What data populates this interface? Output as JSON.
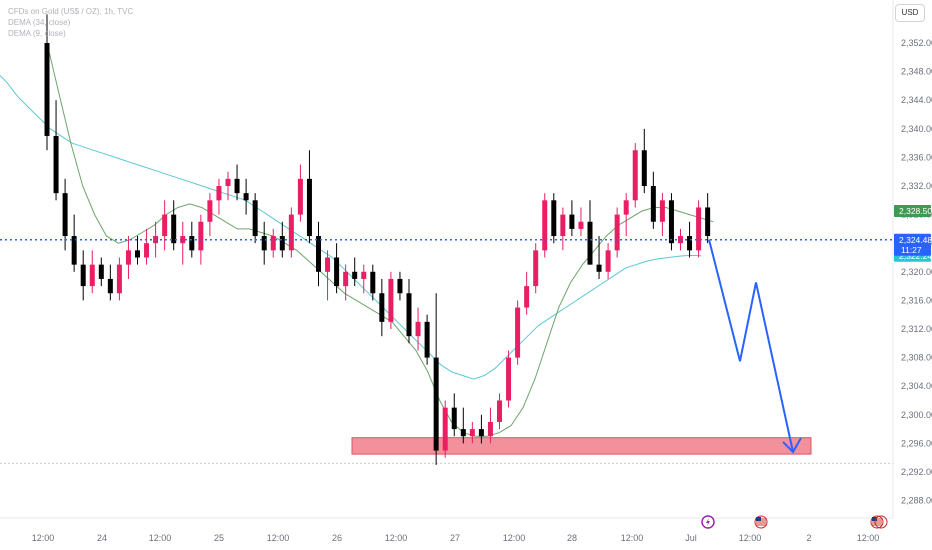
{
  "legend": {
    "symbol": "CFDs on Gold (US$ / OZ), 1h, TVC",
    "dema1": "DEMA (34, close)",
    "dema2": "DEMA (9, close)"
  },
  "currency_label": "USD",
  "price_labels": {
    "high_label": "2,328.50",
    "current_price": "2,324.48",
    "countdown": "11:27",
    "dema_value": "2,322.24"
  },
  "colors": {
    "up": "#e91e63",
    "down": "#000000",
    "dema34": "#5ec8d6",
    "dema9": "#6da56d",
    "projection": "#2962ff",
    "price_line": "#2962ff",
    "zone_fill": "#f28b96",
    "zone_stroke": "#e04a5a"
  },
  "events": [
    {
      "icon": "lightning-icon",
      "after_tick": "Jul"
    },
    {
      "icon": "us-flag-icon",
      "after_tick": "Jul"
    },
    {
      "icon": "us-flag-icon",
      "after_tick": "2"
    }
  ],
  "chart_data": {
    "type": "candlestick",
    "title": "CFDs on Gold (US$ / OZ), 1h, TVC",
    "ylim": [
      2286,
      2355
    ],
    "y_ticks": [
      "2,288.00",
      "2,292.00",
      "2,296.00",
      "2,300.00",
      "2,304.00",
      "2,308.00",
      "2,312.00",
      "2,316.00",
      "2,320.00",
      "2,324.00",
      "2,328.00",
      "2,332.00",
      "2,336.00",
      "2,340.00",
      "2,344.00",
      "2,348.00",
      "2,352.00"
    ],
    "x_ticks": [
      "12:00",
      "24",
      "12:00",
      "25",
      "12:00",
      "26",
      "12:00",
      "27",
      "12:00",
      "28",
      "12:00",
      "Jul",
      "12:00",
      "2",
      "12:00"
    ],
    "candles": [
      [
        2352,
        2356,
        2337,
        2339
      ],
      [
        2339,
        2344,
        2330,
        2331
      ],
      [
        2331,
        2333,
        2323,
        2325
      ],
      [
        2325,
        2328,
        2320,
        2321
      ],
      [
        2321,
        2323,
        2316,
        2318
      ],
      [
        2318,
        2323,
        2317,
        2321
      ],
      [
        2321,
        2322,
        2318,
        2319
      ],
      [
        2319,
        2321,
        2316,
        2317
      ],
      [
        2317,
        2322,
        2316,
        2321
      ],
      [
        2321,
        2325,
        2319,
        2323
      ],
      [
        2323,
        2325,
        2321,
        2322
      ],
      [
        2322,
        2326,
        2321,
        2324
      ],
      [
        2324,
        2327,
        2322,
        2325
      ],
      [
        2325,
        2330,
        2323,
        2328
      ],
      [
        2328,
        2330,
        2323,
        2324
      ],
      [
        2324,
        2327,
        2321,
        2325
      ],
      [
        2325,
        2327,
        2322,
        2323
      ],
      [
        2323,
        2328,
        2321,
        2327
      ],
      [
        2327,
        2331,
        2325,
        2330
      ],
      [
        2330,
        2333,
        2328,
        2332
      ],
      [
        2332,
        2334,
        2330,
        2333
      ],
      [
        2333,
        2335,
        2330,
        2331
      ],
      [
        2331,
        2333,
        2328,
        2330
      ],
      [
        2330,
        2331,
        2324,
        2325
      ],
      [
        2325,
        2327,
        2321,
        2323
      ],
      [
        2323,
        2326,
        2322,
        2325
      ],
      [
        2325,
        2327,
        2322,
        2323
      ],
      [
        2323,
        2329,
        2322,
        2328
      ],
      [
        2328,
        2335,
        2327,
        2333
      ],
      [
        2333,
        2337,
        2324,
        2325
      ],
      [
        2325,
        2327,
        2318,
        2320
      ],
      [
        2320,
        2323,
        2316,
        2322
      ],
      [
        2322,
        2324,
        2317,
        2318
      ],
      [
        2318,
        2321,
        2316,
        2320
      ],
      [
        2320,
        2322,
        2318,
        2319
      ],
      [
        2319,
        2321,
        2317,
        2320
      ],
      [
        2320,
        2321,
        2316,
        2317
      ],
      [
        2317,
        2319,
        2311,
        2313
      ],
      [
        2313,
        2320,
        2312,
        2319
      ],
      [
        2319,
        2320,
        2316,
        2317
      ],
      [
        2317,
        2319,
        2310,
        2311
      ],
      [
        2311,
        2315,
        2309,
        2313
      ],
      [
        2313,
        2314,
        2307,
        2308
      ],
      [
        2308,
        2317,
        2293,
        2295
      ],
      [
        2295,
        2302,
        2294,
        2301
      ],
      [
        2301,
        2303,
        2297,
        2298
      ],
      [
        2298,
        2301,
        2296,
        2297
      ],
      [
        2297,
        2299,
        2296,
        2298
      ],
      [
        2298,
        2300,
        2296,
        2297
      ],
      [
        2297,
        2301,
        2296,
        2299
      ],
      [
        2299,
        2303,
        2298,
        2302
      ],
      [
        2302,
        2309,
        2301,
        2308
      ],
      [
        2308,
        2316,
        2307,
        2315
      ],
      [
        2315,
        2320,
        2314,
        2318
      ],
      [
        2318,
        2324,
        2317,
        2323
      ],
      [
        2323,
        2331,
        2322,
        2330
      ],
      [
        2330,
        2331,
        2324,
        2325
      ],
      [
        2325,
        2329,
        2323,
        2328
      ],
      [
        2328,
        2330,
        2325,
        2326
      ],
      [
        2326,
        2329,
        2325,
        2327
      ],
      [
        2327,
        2330,
        2321,
        2321
      ],
      [
        2321,
        2325,
        2319,
        2320
      ],
      [
        2320,
        2324,
        2319,
        2323
      ],
      [
        2323,
        2329,
        2322,
        2328
      ],
      [
        2328,
        2331,
        2325,
        2330
      ],
      [
        2330,
        2338,
        2329,
        2337
      ],
      [
        2337,
        2340,
        2331,
        2332
      ],
      [
        2332,
        2334,
        2326,
        2327
      ],
      [
        2327,
        2331,
        2325,
        2330
      ],
      [
        2330,
        2331,
        2323,
        2324
      ],
      [
        2324,
        2326,
        2323,
        2325
      ],
      [
        2325,
        2327,
        2322,
        2323
      ],
      [
        2323,
        2330,
        2322,
        2329
      ],
      [
        2329,
        2331,
        2324,
        2325
      ]
    ],
    "series": [
      {
        "name": "DEMA (34, close)",
        "values": [
          2348,
          2346.5,
          2344.5,
          2343,
          2341.5,
          2340,
          2339,
          2338,
          2337.5,
          2337,
          2336.5,
          2336,
          2335.5,
          2335,
          2334.5,
          2334,
          2333.5,
          2333,
          2332.5,
          2332,
          2331.5,
          2331,
          2330.5,
          2330,
          2329,
          2328,
          2327,
          2326,
          2325,
          2324,
          2323,
          2322,
          2320.5,
          2319,
          2317.5,
          2316,
          2314.5,
          2313,
          2311.5,
          2310,
          2308.5,
          2307,
          2306,
          2305.5,
          2305,
          2305.5,
          2306.5,
          2308,
          2309.5,
          2311,
          2312.5,
          2313.5,
          2314.5,
          2315.5,
          2316.5,
          2317.5,
          2318.5,
          2319.5,
          2320.5,
          2321,
          2321.5,
          2321.8,
          2322,
          2322.2,
          2322.3,
          2322.24
        ]
      },
      {
        "name": "DEMA (9, close)",
        "values": [
          2352,
          2345,
          2338,
          2332,
          2328,
          2325,
          2324,
          2324.5,
          2325.5,
          2326.5,
          2328,
          2329,
          2329.5,
          2329,
          2328,
          2327,
          2326,
          2326,
          2325.5,
          2325,
          2324,
          2323,
          2321.5,
          2320,
          2318.5,
          2317,
          2316,
          2315,
          2314,
          2313,
          2311,
          2309,
          2306,
          2302,
          2299,
          2297.5,
          2297,
          2297,
          2297.5,
          2298.5,
          2301,
          2305,
          2310,
          2315,
          2318.5,
          2321,
          2323,
          2325,
          2326.5,
          2327.5,
          2328.5,
          2329,
          2329,
          2328.5,
          2328,
          2327.5,
          2327
        ]
      }
    ],
    "support_zone": {
      "low": 2294.5,
      "high": 2296.8
    },
    "projection_path": [
      2324.5,
      2307.5,
      2318.5,
      2294.8
    ],
    "last_price": 2324.48
  }
}
